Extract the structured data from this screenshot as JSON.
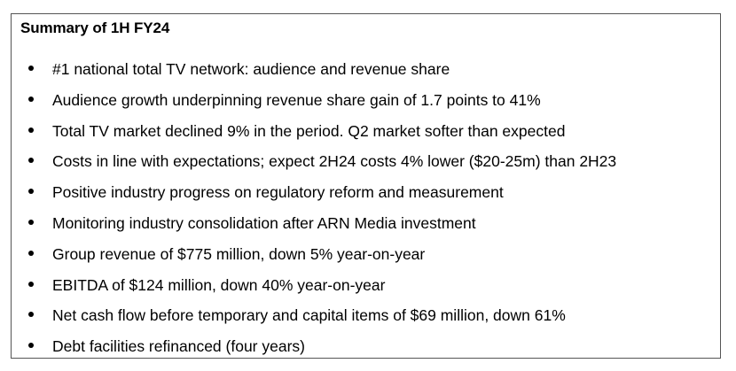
{
  "summary": {
    "title": "Summary of 1H FY24",
    "items": [
      "#1 national total TV network: audience and revenue share",
      "Audience growth underpinning revenue share gain of 1.7 points to 41%",
      "Total TV market declined 9% in the period. Q2 market softer than expected",
      "Costs in line with expectations; expect 2H24 costs 4% lower ($20-25m) than 2H23",
      "Positive industry progress on regulatory reform and measurement",
      "Monitoring industry consolidation after ARN Media investment",
      "Group revenue of $775 million, down 5% year-on-year",
      "EBITDA of $124 million, down 40% year-on-year",
      "Net cash flow before temporary and capital items of $69 million, down 61%",
      "Debt facilities refinanced (four years)"
    ]
  }
}
